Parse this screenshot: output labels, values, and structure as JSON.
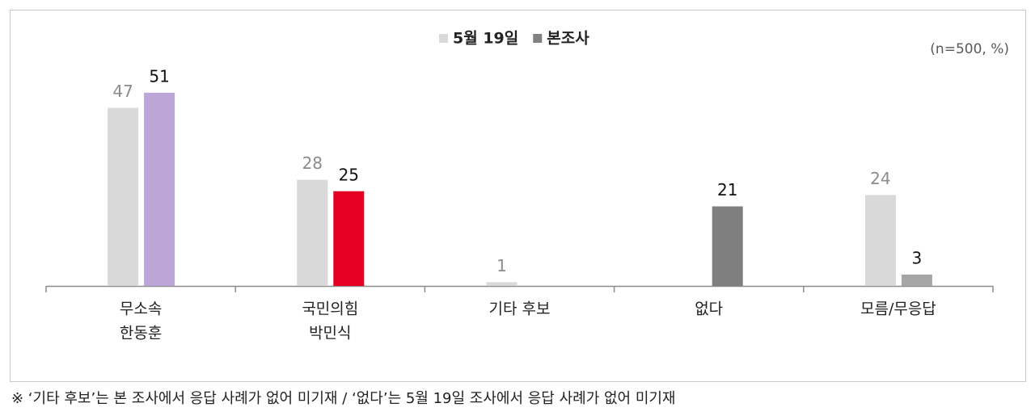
{
  "chart_data": {
    "type": "bar",
    "note": "(n=500, %)",
    "footnote": "※ ‘기타 후보’는 본 조사에서 응답 사례가 없어 미기재 / ‘없다’는 5월 19일 조사에서 응답 사례가 없어 미기재",
    "categories": [
      [
        "무소속",
        "한동훈"
      ],
      [
        "국민의힘",
        "박민식"
      ],
      [
        "기타 후보"
      ],
      [
        "없다"
      ],
      [
        "모름/무응답"
      ]
    ],
    "series": [
      {
        "name": "5월 19일",
        "color": "#d9d9d9",
        "values": [
          47,
          28,
          1,
          null,
          24
        ]
      },
      {
        "name": "본조사",
        "color": "#808080",
        "values": [
          51,
          25,
          null,
          21,
          3
        ],
        "colors": [
          "#bba6d7",
          "#e60023",
          null,
          "#7f7f7f",
          "#a6a6a6"
        ]
      }
    ],
    "legend": "top"
  }
}
